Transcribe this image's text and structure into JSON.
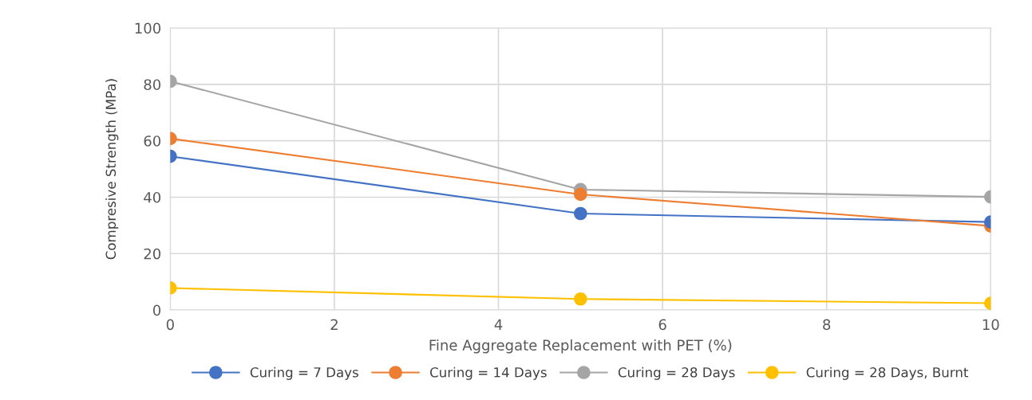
{
  "chart_data": {
    "type": "line",
    "xlabel": "Fine Aggregate Replacement with PET (%)",
    "ylabel": "Compresive Strength (MPa)",
    "x": [
      0,
      5,
      10
    ],
    "series": [
      {
        "name": "Curing = 7 Days",
        "color": "#4472c4",
        "values": [
          54.5,
          34.2,
          31.2
        ]
      },
      {
        "name": "Curing = 14 Days",
        "color": "#ed7d31",
        "values": [
          60.8,
          41,
          29.8
        ]
      },
      {
        "name": "Curing = 28 Days",
        "color": "#a5a5a5",
        "values": [
          81.1,
          42.7,
          40.1
        ]
      },
      {
        "name": "Curing = 28 Days, Burnt",
        "color": "#ffc000",
        "values": [
          7.8,
          3.9,
          2.4
        ]
      }
    ],
    "xlim": [
      0,
      10
    ],
    "xticks": [
      0,
      2,
      4,
      6,
      8,
      10
    ],
    "ylim": [
      0,
      100
    ],
    "yticks": [
      0,
      20,
      40,
      60,
      80,
      100
    ],
    "grid": true,
    "legend": "bottom",
    "marker": "circle",
    "line_style": "solid"
  }
}
